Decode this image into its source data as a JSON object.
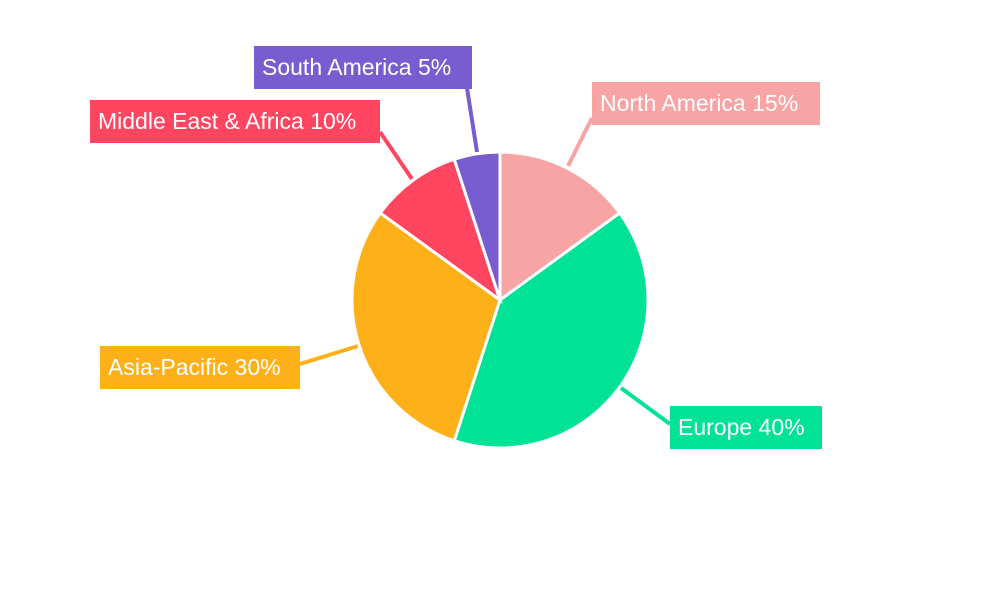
{
  "chart_data": {
    "type": "pie",
    "start_angle": "top, clockwise",
    "slices": [
      {
        "label": "North America",
        "value": 15,
        "text": "North America 15%",
        "color": "#F8A3A4"
      },
      {
        "label": "Europe",
        "value": 40,
        "text": "Europe 40%",
        "color": "#00E396"
      },
      {
        "label": "Asia-Pacific",
        "value": 30,
        "text": "Asia-Pacific 30%",
        "color": "#FEB019"
      },
      {
        "label": "Middle East & Africa",
        "value": 10,
        "text": "Middle East & Africa 10%",
        "color": "#FF4560"
      },
      {
        "label": "South America",
        "value": 5,
        "text": "South America 5%",
        "color": "#775DD0"
      }
    ]
  }
}
